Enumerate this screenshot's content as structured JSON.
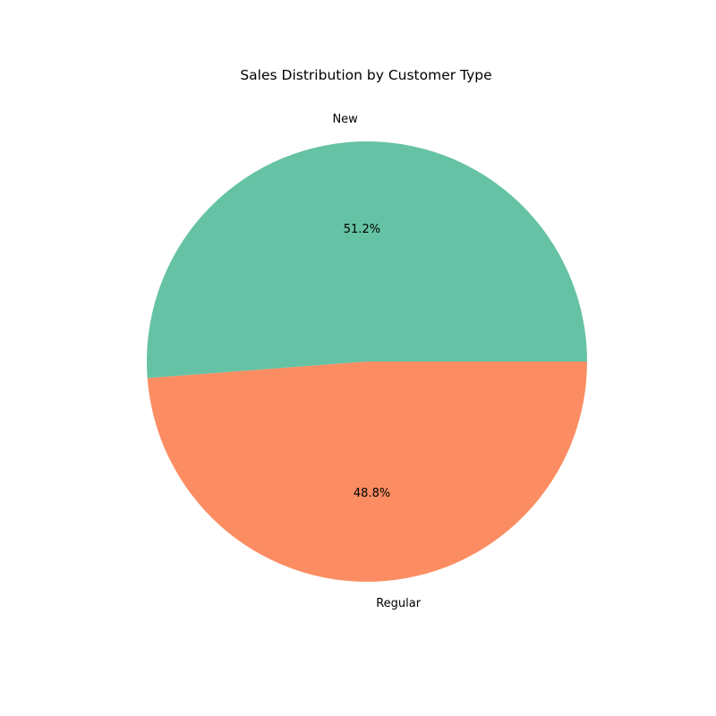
{
  "chart_data": {
    "type": "pie",
    "title": "Sales Distribution by Customer Type",
    "categories": [
      "New",
      "Regular"
    ],
    "values": [
      51.2,
      48.8
    ],
    "labels": [
      "51.2%",
      "48.8%"
    ],
    "colors": [
      "#66c2a5",
      "#fc8d62"
    ],
    "start_angle_deg": 0,
    "direction": "counterclockwise",
    "legend": "none"
  }
}
